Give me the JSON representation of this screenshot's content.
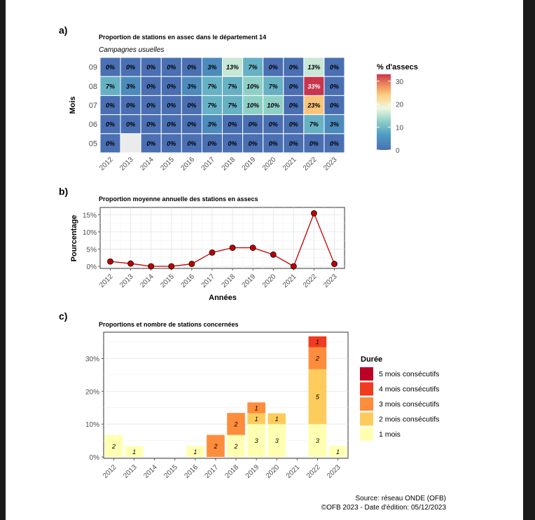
{
  "colors": {
    "heat_low": "#4a6fb2",
    "heat_mid1": "#4d9dc3",
    "heat_mid2": "#8fd0c6",
    "heat_mid3": "#eef7e2",
    "heat_mid4": "#fcd282",
    "heat_high": "#c8354d",
    "missing": "#ebebeb",
    "line": "#c00000",
    "dur1": "#ffffb2",
    "dur2": "#fecc5c",
    "dur3": "#fd8d3c",
    "dur4": "#f03b20",
    "dur5": "#bd0026"
  },
  "panel_a": {
    "tag": "a)",
    "title": "Proportion de stations en assec dans le département 14",
    "subtitle": "Campagnes usuelles",
    "ylabel": "Mois",
    "legend_title": "% d'assecs",
    "legend_ticks": [
      "30",
      "20",
      "10",
      "0"
    ]
  },
  "panel_b": {
    "tag": "b)",
    "title": "Proportion moyenne annuelle des stations en assecs",
    "ylabel": "Pourcentage",
    "xlabel": "Années",
    "yticks": [
      "15%",
      "10%",
      "5%",
      "0%"
    ]
  },
  "panel_c": {
    "tag": "c)",
    "title": "Proportions et nombre de stations concernées",
    "yticks": [
      "30%",
      "20%",
      "10%",
      "0%"
    ],
    "legend_title": "Durée"
  },
  "footer": {
    "source": "Source: réseau ONDE (OFB)",
    "edition": "©OFB 2023 - Date d'édition: 05/12/2023"
  },
  "chart_data": [
    {
      "type": "heatmap",
      "x": [
        "2012",
        "2013",
        "2014",
        "2015",
        "2016",
        "2017",
        "2018",
        "2019",
        "2020",
        "2021",
        "2022",
        "2023"
      ],
      "y": [
        "09",
        "08",
        "07",
        "06",
        "05"
      ],
      "values": [
        [
          0,
          0,
          0,
          0,
          0,
          3,
          13,
          7,
          0,
          0,
          13,
          0
        ],
        [
          7,
          3,
          0,
          0,
          3,
          7,
          7,
          10,
          7,
          0,
          33,
          0
        ],
        [
          0,
          0,
          0,
          0,
          0,
          7,
          7,
          10,
          10,
          0,
          23,
          0
        ],
        [
          0,
          0,
          0,
          0,
          0,
          3,
          0,
          0,
          0,
          0,
          7,
          3
        ],
        [
          0,
          null,
          0,
          0,
          0,
          0,
          0,
          0,
          0,
          0,
          0,
          0
        ]
      ],
      "labels": [
        [
          "0%",
          "0%",
          "0%",
          "0%",
          "0%",
          "3%",
          "13%",
          "7%",
          "0%",
          "0%",
          "13%",
          "0%"
        ],
        [
          "7%",
          "3%",
          "0%",
          "0%",
          "3%",
          "7%",
          "7%",
          "10%",
          "7%",
          "0%",
          "33%",
          "0%"
        ],
        [
          "0%",
          "0%",
          "0%",
          "0%",
          "0%",
          "7%",
          "7%",
          "10%",
          "10%",
          "0%",
          "23%",
          "0%"
        ],
        [
          "0%",
          "0%",
          "0%",
          "0%",
          "0%",
          "3%",
          "0%",
          "0%",
          "0%",
          "0%",
          "7%",
          "3%"
        ],
        [
          "0%",
          "",
          "0%",
          "0%",
          "0%",
          "0%",
          "0%",
          "0%",
          "0%",
          "0%",
          "0%",
          "0%"
        ]
      ],
      "color_range": [
        0,
        33
      ]
    },
    {
      "type": "line",
      "x": [
        "2012",
        "2013",
        "2014",
        "2015",
        "2016",
        "2017",
        "2018",
        "2019",
        "2020",
        "2021",
        "2022",
        "2023"
      ],
      "values": [
        1.4,
        0.8,
        0,
        0,
        0.7,
        4.0,
        5.4,
        5.4,
        3.4,
        0,
        15.4,
        0.7
      ],
      "ylim": [
        0,
        16.5
      ]
    },
    {
      "type": "bar",
      "stacked": true,
      "x": [
        "2012",
        "2013",
        "2014",
        "2015",
        "2016",
        "2017",
        "2018",
        "2019",
        "2020",
        "2021",
        "2022",
        "2023"
      ],
      "ylim": [
        0,
        36.7
      ],
      "series": [
        {
          "name": "1 mois",
          "values": [
            6.7,
            3.3,
            0,
            0,
            3.3,
            0,
            6.7,
            10,
            10,
            0,
            10,
            3.3
          ],
          "counts": [
            "2",
            "1",
            "",
            "",
            "1",
            "",
            "2",
            "3",
            "3",
            "",
            "3",
            "1"
          ]
        },
        {
          "name": "2 mois consécutifs",
          "values": [
            0,
            0,
            0,
            0,
            0,
            0,
            0,
            3.3,
            3.3,
            0,
            16.7,
            0
          ],
          "counts": [
            "",
            "",
            "",
            "",
            "",
            "",
            "",
            "1",
            "1",
            "",
            "5",
            ""
          ]
        },
        {
          "name": "3 mois consécutifs",
          "values": [
            0,
            0,
            0,
            0,
            0,
            6.7,
            6.7,
            3.3,
            0,
            0,
            6.7,
            0
          ],
          "counts": [
            "",
            "",
            "",
            "",
            "",
            "2",
            "2",
            "1",
            "",
            "",
            "2",
            ""
          ]
        },
        {
          "name": "4 mois consécutifs",
          "values": [
            0,
            0,
            0,
            0,
            0,
            0,
            0,
            0,
            0,
            0,
            3.3,
            0
          ],
          "counts": [
            "",
            "",
            "",
            "",
            "",
            "",
            "",
            "",
            "",
            "",
            "1",
            ""
          ]
        },
        {
          "name": "5 mois consécutifs",
          "values": [
            0,
            0,
            0,
            0,
            0,
            0,
            0,
            0,
            0,
            0,
            0,
            0
          ],
          "counts": [
            "",
            "",
            "",
            "",
            "",
            "",
            "",
            "",
            "",
            "",
            "",
            ""
          ]
        }
      ]
    }
  ]
}
